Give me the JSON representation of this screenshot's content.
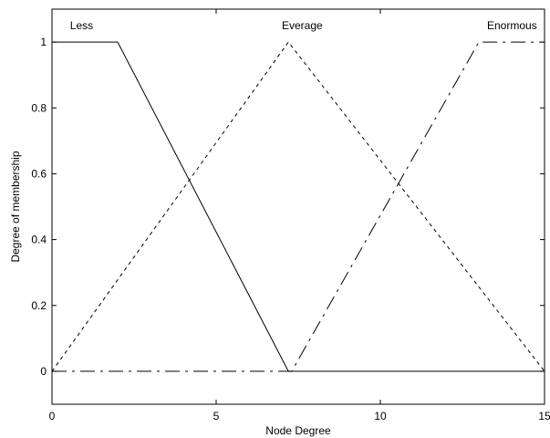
{
  "chart_data": {
    "type": "line",
    "title": "",
    "xlabel": "Node Degree",
    "ylabel": "Degree of membership",
    "xlim": [
      0,
      15
    ],
    "ylim": [
      -0.1,
      1.1
    ],
    "xticks": [
      0,
      5,
      10,
      15
    ],
    "yticks": [
      0,
      0.2,
      0.4,
      0.6,
      0.8,
      1
    ],
    "xtick_labels": [
      "0",
      "5",
      "10",
      "15"
    ],
    "ytick_labels": [
      "0",
      "0.2",
      "0.4",
      "0.6",
      "0.8",
      "1"
    ],
    "grid": false,
    "legend": "none",
    "series": [
      {
        "name": "Less",
        "line_style": "solid",
        "color": "#000000",
        "x": [
          0,
          2,
          7.2,
          7.3,
          15
        ],
        "y": [
          1,
          1,
          0,
          0,
          0
        ]
      },
      {
        "name": "Everage",
        "line_style": "dashed",
        "color": "#000000",
        "x": [
          0,
          7.2,
          15
        ],
        "y": [
          0,
          1,
          0
        ]
      },
      {
        "name": "Enormous",
        "line_style": "dash-dot",
        "color": "#000000",
        "x": [
          0,
          7.3,
          13,
          15
        ],
        "y": [
          0,
          0,
          1,
          1
        ]
      }
    ],
    "annotations": [
      {
        "text": "Less",
        "x": 0.55,
        "y": 1.05
      },
      {
        "text": "Everage",
        "x": 7.0,
        "y": 1.05
      },
      {
        "text": "Enormous",
        "x": 13.25,
        "y": 1.05
      }
    ]
  }
}
